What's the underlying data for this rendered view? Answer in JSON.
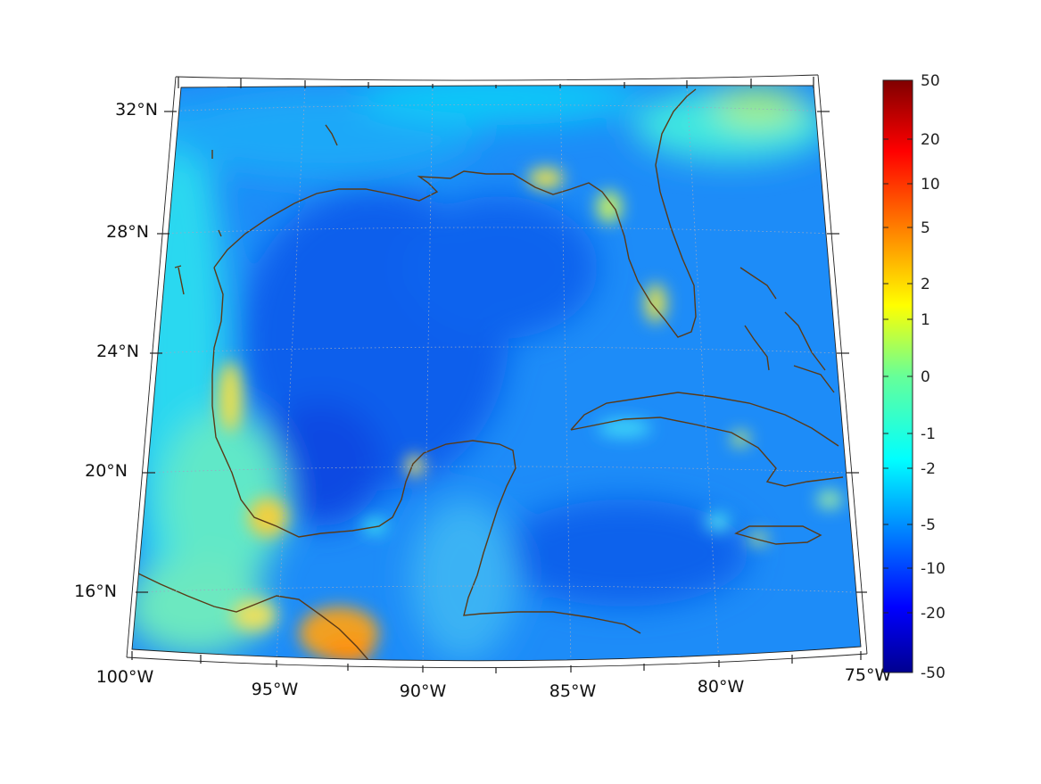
{
  "map": {
    "lon_labels": [
      "100°W",
      "95°W",
      "90°W",
      "85°W",
      "80°W",
      "75°W"
    ],
    "lat_labels": [
      "32°N",
      "28°N",
      "24°N",
      "20°N",
      "16°N"
    ],
    "lon_values": [
      -100,
      -95,
      -90,
      -85,
      -80,
      -75
    ],
    "lat_values": [
      32,
      28,
      24,
      20,
      16
    ],
    "projection": "conic",
    "coastline_color": "#5a3a17",
    "grid": "dotted"
  },
  "colorbar": {
    "tick_labels": [
      "50",
      "20",
      "10",
      "5",
      "2",
      "1",
      "0",
      "-1",
      "-2",
      "-5",
      "-10",
      "-20",
      "-50"
    ],
    "colormap": "jet",
    "top_color": "#800000",
    "bottom_color": "#00008f"
  }
}
